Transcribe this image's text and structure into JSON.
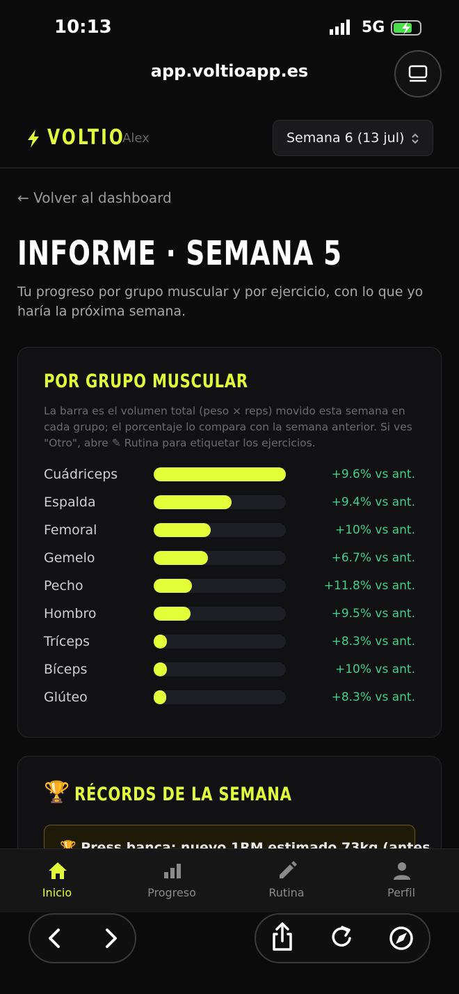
{
  "status": {
    "time": "10:13",
    "network": "5G"
  },
  "browser": {
    "url": "app.voltioapp.es"
  },
  "header": {
    "brand": "VOLTIO",
    "user": "Alex",
    "week_select": "Semana 6 (13 jul)"
  },
  "back_link": "← Volver al dashboard",
  "page": {
    "title": "INFORME · SEMANA 5",
    "subtitle": "Tu progreso por grupo muscular y por ejercicio, con lo que yo haría la próxima semana."
  },
  "muscle_card": {
    "title": "POR GRUPO MUSCULAR",
    "description": "La barra es el volumen total (peso × reps) movido esta semana en cada grupo; el porcentaje lo compara con la semana anterior. Si ves \"Otro\", abre ✎ Rutina para etiquetar los ejercicios.",
    "rows": [
      {
        "name": "Cuádriceps",
        "volume_share": 1.0,
        "change": "+9.6% vs ant."
      },
      {
        "name": "Espalda",
        "volume_share": 0.59,
        "change": "+9.4% vs ant."
      },
      {
        "name": "Femoral",
        "volume_share": 0.43,
        "change": "+10% vs ant."
      },
      {
        "name": "Gemelo",
        "volume_share": 0.41,
        "change": "+6.7% vs ant."
      },
      {
        "name": "Pecho",
        "volume_share": 0.29,
        "change": "+11.8% vs ant."
      },
      {
        "name": "Hombro",
        "volume_share": 0.28,
        "change": "+9.5% vs ant."
      },
      {
        "name": "Tríceps",
        "volume_share": 0.1,
        "change": "+8.3% vs ant."
      },
      {
        "name": "Bíceps",
        "volume_share": 0.1,
        "change": "+10% vs ant."
      },
      {
        "name": "Glúteo",
        "volume_share": 0.07,
        "change": "+8.3% vs ant."
      }
    ]
  },
  "records_card": {
    "title": "RÉCORDS DE LA SEMANA",
    "items": [
      "🏆 Press banca: nuevo 1RM estimado 73kg (antes"
    ]
  },
  "tabs": [
    "Inicio",
    "Progreso",
    "Rutina",
    "Perfil"
  ]
}
